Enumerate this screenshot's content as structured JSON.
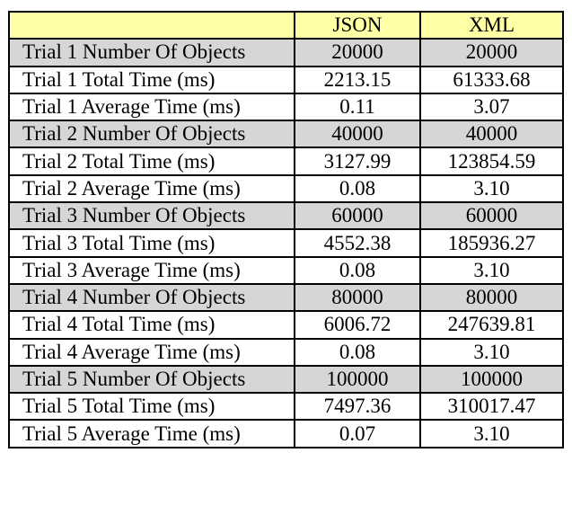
{
  "table": {
    "headers": [
      "",
      "JSON",
      "XML"
    ],
    "rows": [
      {
        "label": "Trial 1 Number Of Objects",
        "json": "20000",
        "xml": "20000",
        "shaded": true
      },
      {
        "label": "Trial 1 Total Time (ms)",
        "json": "2213.15",
        "xml": "61333.68",
        "shaded": false
      },
      {
        "label": "Trial 1 Average Time (ms)",
        "json": "0.11",
        "xml": "3.07",
        "shaded": false
      },
      {
        "label": "Trial 2 Number Of Objects",
        "json": "40000",
        "xml": "40000",
        "shaded": true
      },
      {
        "label": "Trial 2 Total Time (ms)",
        "json": "3127.99",
        "xml": "123854.59",
        "shaded": false
      },
      {
        "label": "Trial 2 Average Time (ms)",
        "json": "0.08",
        "xml": "3.10",
        "shaded": false
      },
      {
        "label": "Trial 3 Number Of Objects",
        "json": "60000",
        "xml": "60000",
        "shaded": true
      },
      {
        "label": "Trial 3 Total Time (ms)",
        "json": "4552.38",
        "xml": "185936.27",
        "shaded": false
      },
      {
        "label": "Trial 3 Average Time (ms)",
        "json": "0.08",
        "xml": "3.10",
        "shaded": false
      },
      {
        "label": "Trial 4 Number Of Objects",
        "json": "80000",
        "xml": "80000",
        "shaded": true
      },
      {
        "label": "Trial 4 Total Time (ms)",
        "json": "6006.72",
        "xml": "247639.81",
        "shaded": false
      },
      {
        "label": "Trial 4 Average Time (ms)",
        "json": "0.08",
        "xml": "3.10",
        "shaded": false
      },
      {
        "label": "Trial 5 Number Of Objects",
        "json": "100000",
        "xml": "100000",
        "shaded": true
      },
      {
        "label": "Trial 5 Total Time (ms)",
        "json": "7497.36",
        "xml": "310017.47",
        "shaded": false
      },
      {
        "label": "Trial 5 Average Time (ms)",
        "json": "0.07",
        "xml": "3.10",
        "shaded": false
      }
    ]
  },
  "colors": {
    "header_bg": "#ffffa6",
    "shaded_row_bg": "#d6d6d6",
    "border": "#000000"
  }
}
